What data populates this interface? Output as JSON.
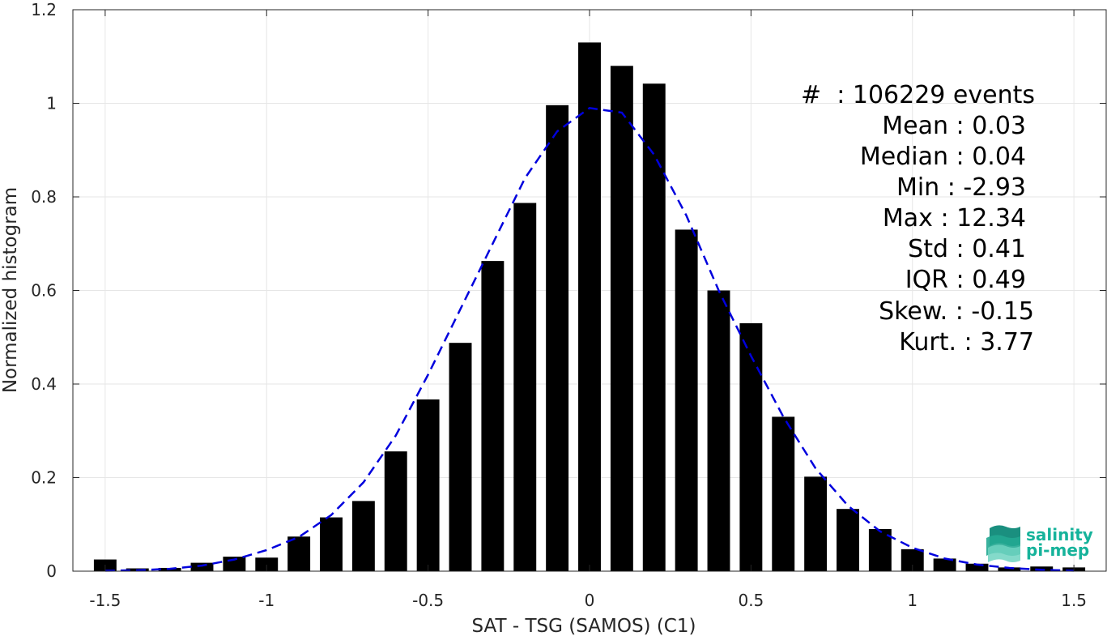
{
  "chart_data": {
    "type": "bar",
    "xlabel": "SAT - TSG (SAMOS) (C1)",
    "ylabel": "Normalized histogram",
    "xlim": [
      -1.6,
      1.6
    ],
    "ylim": [
      0,
      1.2
    ],
    "xticks": [
      -1.5,
      -1,
      -0.5,
      0,
      0.5,
      1,
      1.5
    ],
    "xtick_labels": [
      "-1.5",
      "-1",
      "-0.5",
      "0",
      "0.5",
      "1",
      "1.5"
    ],
    "yticks": [
      0,
      0.2,
      0.4,
      0.6,
      0.8,
      1,
      1.2
    ],
    "ytick_labels": [
      "0",
      "0.2",
      "0.4",
      "0.6",
      "0.8",
      "1",
      "1.2"
    ],
    "grid": true,
    "bar_color": "#000000",
    "fit_color": "#0000dd",
    "bars": {
      "x": [
        -1.5,
        -1.4,
        -1.3,
        -1.2,
        -1.1,
        -1.0,
        -0.9,
        -0.8,
        -0.7,
        -0.6,
        -0.5,
        -0.4,
        -0.3,
        -0.2,
        -0.1,
        0.0,
        0.1,
        0.2,
        0.3,
        0.4,
        0.5,
        0.6,
        0.7,
        0.8,
        0.9,
        1.0,
        1.1,
        1.2,
        1.3,
        1.4,
        1.5
      ],
      "values": [
        0.025,
        0.006,
        0.007,
        0.018,
        0.031,
        0.029,
        0.074,
        0.115,
        0.15,
        0.256,
        0.367,
        0.488,
        0.663,
        0.787,
        0.996,
        1.13,
        1.08,
        1.042,
        0.73,
        0.6,
        0.53,
        0.33,
        0.202,
        0.133,
        0.09,
        0.047,
        0.027,
        0.016,
        0.008,
        0.01,
        0.008
      ]
    },
    "fit_curve": {
      "style": "dashed",
      "x": [
        -1.5,
        -1.4,
        -1.3,
        -1.2,
        -1.1,
        -1.0,
        -0.9,
        -0.8,
        -0.7,
        -0.6,
        -0.5,
        -0.4,
        -0.3,
        -0.2,
        -0.1,
        0.0,
        0.1,
        0.2,
        0.3,
        0.4,
        0.5,
        0.6,
        0.7,
        0.8,
        0.9,
        1.0,
        1.1,
        1.2,
        1.3,
        1.4,
        1.5
      ],
      "y": [
        0.001,
        0.002,
        0.005,
        0.012,
        0.025,
        0.045,
        0.073,
        0.12,
        0.19,
        0.29,
        0.42,
        0.56,
        0.7,
        0.84,
        0.94,
        0.99,
        0.98,
        0.89,
        0.76,
        0.6,
        0.46,
        0.33,
        0.22,
        0.14,
        0.085,
        0.05,
        0.027,
        0.014,
        0.007,
        0.003,
        0.001
      ]
    }
  },
  "stats": [
    "#  : 106229 events",
    "Mean : 0.03",
    "Median : 0.04",
    "Min : -2.93",
    "Max : 12.34",
    "Std : 0.41",
    "IQR : 0.49",
    "Skew. : -0.15",
    "Kurt. : 3.77"
  ],
  "logo": {
    "line1": "salinity",
    "line2": "pi-mep",
    "color": "#16b39b"
  }
}
